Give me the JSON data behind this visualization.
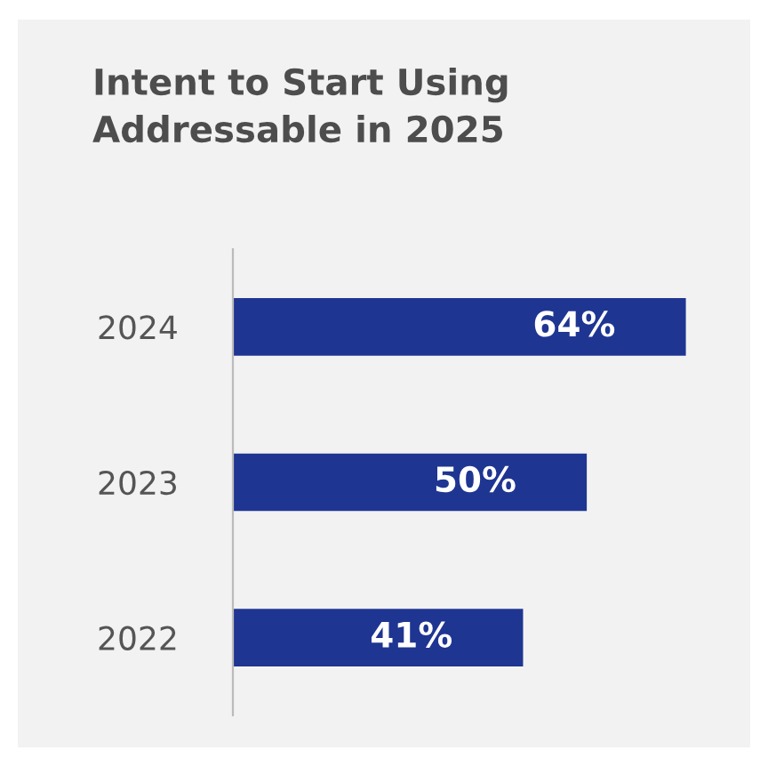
{
  "chart_data": {
    "type": "bar",
    "orientation": "horizontal",
    "title": "Intent to Start Using\nAddressable in 2025",
    "categories": [
      "2024",
      "2023",
      "2022"
    ],
    "values": [
      64,
      50,
      41
    ],
    "value_labels": [
      "64%",
      "50%",
      "41%"
    ],
    "color": "#1f3592",
    "grid": false,
    "legend": false
  }
}
